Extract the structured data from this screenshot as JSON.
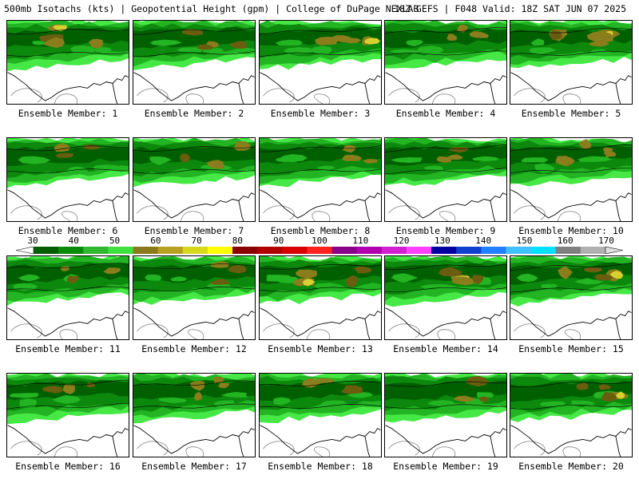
{
  "header": {
    "left": "500mb Isotachs (kts) | Geopotential Height (gpm) | College of DuPage NEXLAB",
    "right": "18Z GEFS | F048 Valid: 18Z SAT JUN 07 2025"
  },
  "members": [
    {
      "label": "Ensemble Member: 1",
      "intensity": 0.8
    },
    {
      "label": "Ensemble Member: 2",
      "intensity": 0.7
    },
    {
      "label": "Ensemble Member: 3",
      "intensity": 0.85
    },
    {
      "label": "Ensemble Member: 4",
      "intensity": 0.45
    },
    {
      "label": "Ensemble Member: 5",
      "intensity": 0.9
    },
    {
      "label": "Ensemble Member: 6",
      "intensity": 0.55
    },
    {
      "label": "Ensemble Member: 7",
      "intensity": 0.6
    },
    {
      "label": "Ensemble Member: 8",
      "intensity": 0.55
    },
    {
      "label": "Ensemble Member: 9",
      "intensity": 0.6
    },
    {
      "label": "Ensemble Member: 10",
      "intensity": 0.65
    },
    {
      "label": "Ensemble Member: 11",
      "intensity": 0.4
    },
    {
      "label": "Ensemble Member: 12",
      "intensity": 0.55
    },
    {
      "label": "Ensemble Member: 13",
      "intensity": 0.8
    },
    {
      "label": "Ensemble Member: 14",
      "intensity": 0.75
    },
    {
      "label": "Ensemble Member: 15",
      "intensity": 0.8
    },
    {
      "label": "Ensemble Member: 16",
      "intensity": 0.55
    },
    {
      "label": "Ensemble Member: 17",
      "intensity": 0.65
    },
    {
      "label": "Ensemble Member: 18",
      "intensity": 0.75
    },
    {
      "label": "Ensemble Member: 19",
      "intensity": 0.65
    },
    {
      "label": "Ensemble Member: 20",
      "intensity": 0.75
    }
  ],
  "colorbar": {
    "labels": [
      "30",
      "40",
      "50",
      "60",
      "70",
      "80",
      "90",
      "100",
      "110",
      "120",
      "130",
      "140",
      "150",
      "160",
      "170"
    ],
    "colors": [
      "#005f00",
      "#0a8a0a",
      "#2db82d",
      "#3fe03f",
      "#8b7a1a",
      "#b8a020",
      "#d8d81a",
      "#ffff00",
      "#8b0000",
      "#b00000",
      "#d80000",
      "#ff2020",
      "#8b008b",
      "#b000b0",
      "#d020d0",
      "#ff40ff",
      "#0000a0",
      "#1040d0",
      "#2080ff",
      "#40c0ff",
      "#00e0ff",
      "#808080",
      "#b0b0b0"
    ],
    "map_colors": {
      "lime": "#46e846",
      "light_green": "#22b422",
      "green": "#0c880c",
      "dark_green": "#006000",
      "olive": "#8a7d1c",
      "dark_olive": "#6a5d10",
      "yellow": "#d8d030",
      "coast": "#000000",
      "state_border": "#808080"
    }
  }
}
